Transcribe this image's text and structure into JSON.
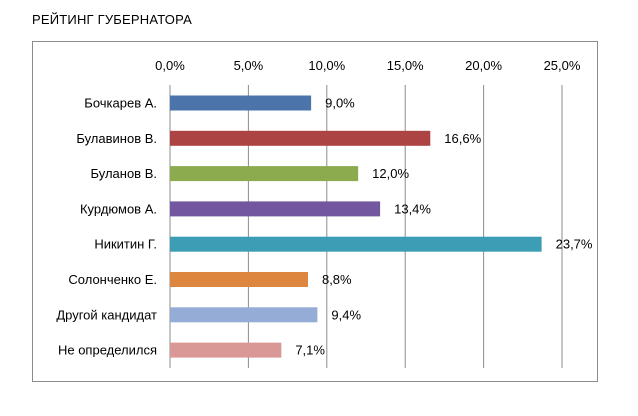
{
  "header": {
    "title": "РЕЙТИНГ ГУБЕРНАТОРА"
  },
  "chart_data": {
    "type": "bar",
    "orientation": "horizontal",
    "title": "РЕЙТИНГ ГУБЕРНАТОРА",
    "categories": [
      "Бочкарев А.",
      "Булавинов В.",
      "Буланов В.",
      "Курдюмов А.",
      "Никитин Г.",
      "Солонченко Е.",
      "Другой кандидат",
      "Не определился"
    ],
    "values": [
      9.0,
      16.6,
      12.0,
      13.4,
      23.7,
      8.8,
      9.4,
      7.1
    ],
    "value_labels": [
      "9,0%",
      "16,6%",
      "12,0%",
      "13,4%",
      "23,7%",
      "8,8%",
      "9,4%",
      "7,1%"
    ],
    "colors": [
      "#4a74aa",
      "#ad4444",
      "#8cab4f",
      "#7257a0",
      "#3d9db4",
      "#dd8640",
      "#94acd6",
      "#d99796"
    ],
    "xlim": [
      0,
      25
    ],
    "ticks": [
      0,
      5,
      10,
      15,
      20,
      25
    ],
    "tick_labels": [
      "0,0%",
      "5,0%",
      "10,0%",
      "15,0%",
      "20,0%",
      "25,0%"
    ],
    "axis_position": "top",
    "grid": true,
    "legend": "none"
  }
}
